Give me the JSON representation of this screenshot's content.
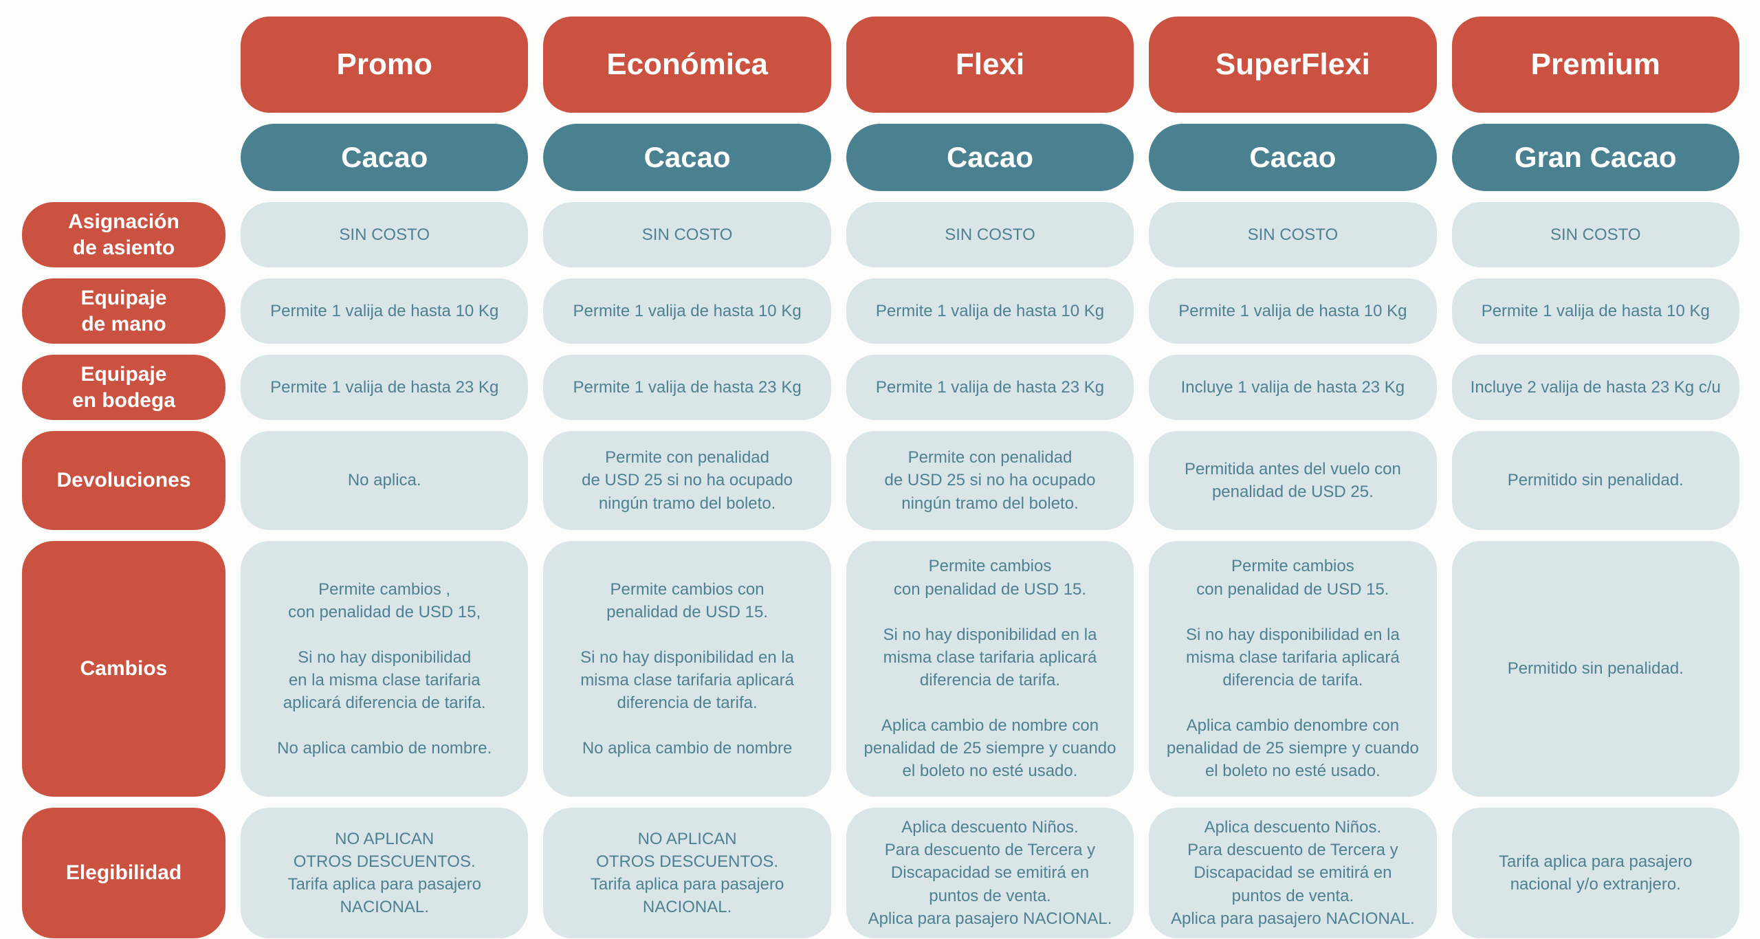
{
  "colors": {
    "accent_red": "#cb5240",
    "accent_teal": "#4a8190",
    "cell_background": "#d9e5e7",
    "cell_text": "#4e8191",
    "page_background": "#fcfcfb"
  },
  "columns": [
    {
      "fare": "Promo",
      "brand": "Cacao"
    },
    {
      "fare": "Económica",
      "brand": "Cacao"
    },
    {
      "fare": "Flexi",
      "brand": "Cacao"
    },
    {
      "fare": "SuperFlexi",
      "brand": "Cacao"
    },
    {
      "fare": "Premium",
      "brand": "Gran Cacao"
    }
  ],
  "rows": [
    {
      "label": "Asignación\nde asiento",
      "cells": [
        "SIN COSTO",
        "SIN COSTO",
        "SIN COSTO",
        "SIN COSTO",
        "SIN COSTO"
      ]
    },
    {
      "label": "Equipaje\nde mano",
      "cells": [
        "Permite 1 valija de hasta 10 Kg",
        "Permite 1 valija de hasta 10 Kg",
        "Permite 1 valija de hasta 10 Kg",
        "Permite 1 valija de hasta 10 Kg",
        "Permite 1 valija de hasta 10 Kg"
      ]
    },
    {
      "label": "Equipaje\nen bodega",
      "cells": [
        "Permite 1 valija de hasta 23 Kg",
        "Permite 1 valija de hasta 23 Kg",
        "Permite 1 valija de hasta 23 Kg",
        "Incluye 1 valija de hasta 23 Kg",
        "Incluye 2 valija de hasta 23 Kg c/u"
      ]
    },
    {
      "label": "Devoluciones",
      "cells": [
        "No aplica.",
        "Permite con penalidad\nde USD 25 si no ha ocupado\nningún tramo del boleto.",
        "Permite con penalidad\nde USD 25 si no ha ocupado\nningún tramo del boleto.",
        "Permitida antes del vuelo con\npenalidad de USD 25.",
        "Permitido sin penalidad."
      ]
    },
    {
      "label": "Cambios",
      "cells": [
        "Permite cambios ,\ncon penalidad de USD 15,\n\nSi no hay disponibilidad\nen la misma clase tarifaria\naplicará diferencia de tarifa.\n\nNo aplica cambio de nombre.",
        "Permite cambios con\npenalidad de USD 15.\n\nSi no hay disponibilidad en la\nmisma clase tarifaria aplicará\ndiferencia de tarifa.\n\nNo aplica cambio de nombre",
        "Permite cambios\ncon penalidad de USD 15.\n\nSi no hay disponibilidad en la\nmisma clase tarifaria aplicará\ndiferencia de tarifa.\n\nAplica cambio de nombre con\npenalidad de 25 siempre y cuando\nel boleto no esté usado.",
        "Permite cambios\ncon penalidad de USD 15.\n\nSi no hay disponibilidad en la\nmisma clase tarifaria aplicará\ndiferencia de tarifa.\n\nAplica cambio denombre con\npenalidad de 25 siempre y cuando\nel boleto no esté usado.",
        "Permitido sin penalidad."
      ]
    },
    {
      "label": "Elegibilidad",
      "cells": [
        "NO APLICAN\nOTROS DESCUENTOS.\nTarifa aplica para pasajero\nNACIONAL.",
        "NO APLICAN\nOTROS DESCUENTOS.\nTarifa aplica para pasajero\nNACIONAL.",
        "Aplica descuento Niños.\nPara descuento de Tercera y\nDiscapacidad se emitirá en\npuntos de venta.\nAplica  para pasajero NACIONAL.",
        "Aplica descuento Niños.\nPara descuento de Tercera y\nDiscapacidad se emitirá en\npuntos de venta.\nAplica  para pasajero NACIONAL.",
        "Tarifa aplica para pasajero\nnacional y/o extranjero."
      ]
    }
  ]
}
